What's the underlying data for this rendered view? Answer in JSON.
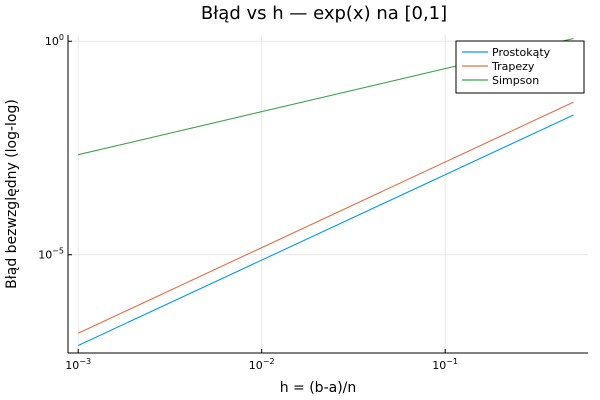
{
  "chart_data": {
    "type": "line",
    "title": "Błąd vs h — exp(x) na [0,1]",
    "xlabel": "h = (b-a)/n",
    "ylabel": "Błąd bezwzględny (log-log)",
    "xscale": "log",
    "yscale": "log",
    "xlim": [
      0.00088,
      0.6
    ],
    "ylim": [
      5e-08,
      1.4
    ],
    "grid": true,
    "legend_position": "top-right",
    "x_ticks": [
      {
        "value": 0.001,
        "base": "10",
        "exp": "−3"
      },
      {
        "value": 0.01,
        "base": "10",
        "exp": "−2"
      },
      {
        "value": 0.1,
        "base": "10",
        "exp": "−1"
      }
    ],
    "y_ticks": [
      {
        "value": 1e-05,
        "base": "10",
        "exp": "−5"
      },
      {
        "value": 1,
        "base": "10",
        "exp": "0"
      }
    ],
    "series": [
      {
        "name": "Prostokąty",
        "color": "#009AFA",
        "x": [
          0.001,
          0.5
        ],
        "y": [
          7.5e-08,
          0.0187
        ]
      },
      {
        "name": "Trapezy",
        "color": "#E36F47",
        "x": [
          0.001,
          0.5
        ],
        "y": [
          1.45e-07,
          0.0375
        ]
      },
      {
        "name": "Simpson",
        "color": "#3EA44E",
        "x": [
          0.001,
          0.5
        ],
        "y": [
          0.0022,
          1.16
        ]
      }
    ]
  }
}
